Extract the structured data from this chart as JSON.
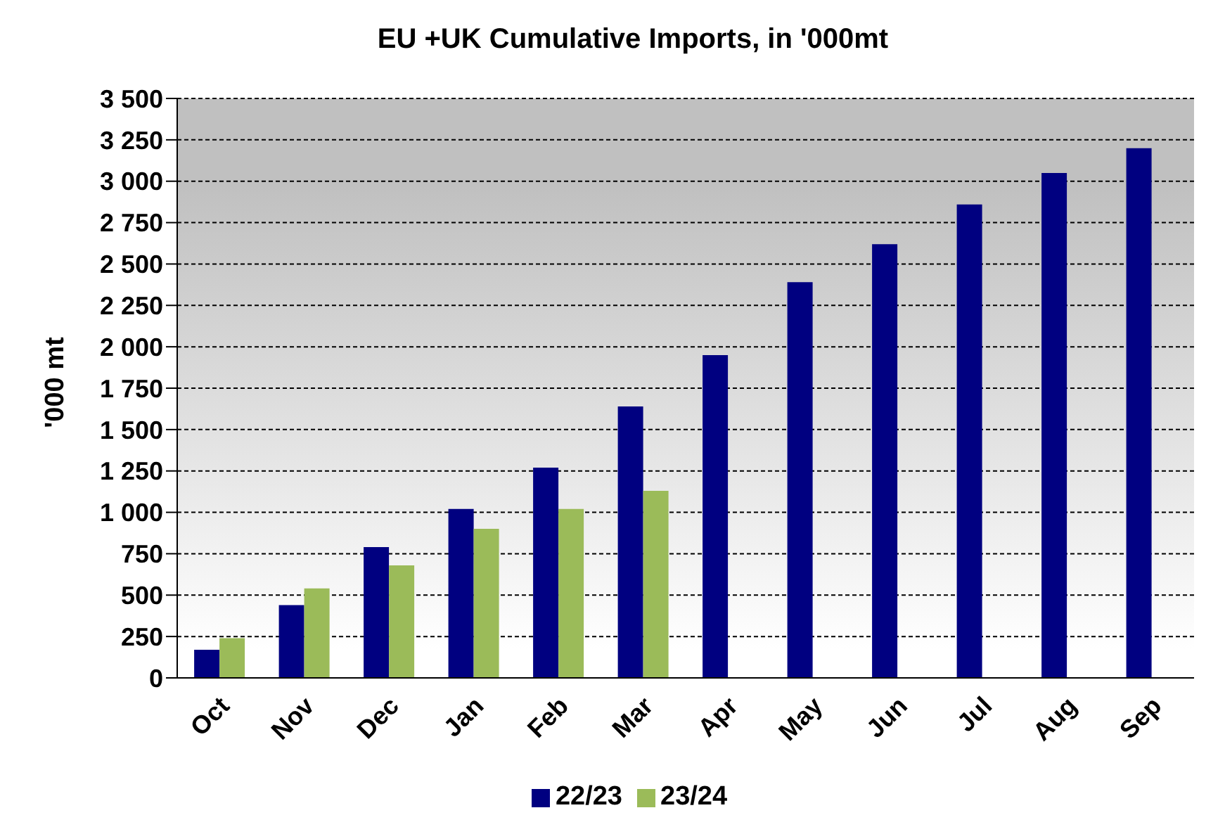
{
  "chart_data": {
    "type": "bar",
    "title": "EU +UK Cumulative Imports, in '000mt",
    "ylabel": "'000 mt",
    "categories": [
      "Oct",
      "Nov",
      "Dec",
      "Jan",
      "Feb",
      "Mar",
      "Apr",
      "May",
      "Jun",
      "Jul",
      "Aug",
      "Sep"
    ],
    "series": [
      {
        "name": "22/23",
        "color": "#000080",
        "values": [
          170,
          440,
          790,
          1020,
          1270,
          1640,
          1950,
          2390,
          2620,
          2860,
          3050,
          3200
        ]
      },
      {
        "name": "23/24",
        "color": "#9bbb59",
        "values": [
          240,
          540,
          680,
          900,
          1020,
          1130,
          null,
          null,
          null,
          null,
          null,
          null
        ]
      }
    ],
    "ylim": [
      0,
      3500
    ],
    "yticks": [
      0,
      250,
      500,
      750,
      {
        "value": 1000,
        "label": "1 000"
      },
      {
        "value": 1250,
        "label": "1 250"
      },
      {
        "value": 1500,
        "label": "1 500"
      },
      {
        "value": 1750,
        "label": "1 750"
      },
      {
        "value": 2000,
        "label": "2 000"
      },
      {
        "value": 2250,
        "label": "2 250"
      },
      {
        "value": 2500,
        "label": "2 500"
      },
      {
        "value": 2750,
        "label": "2 750"
      },
      {
        "value": 3000,
        "label": "3 000"
      },
      {
        "value": 3250,
        "label": "3 250"
      },
      {
        "value": 3500,
        "label": "3 500"
      }
    ],
    "grid": "y",
    "legend": "bottom"
  }
}
